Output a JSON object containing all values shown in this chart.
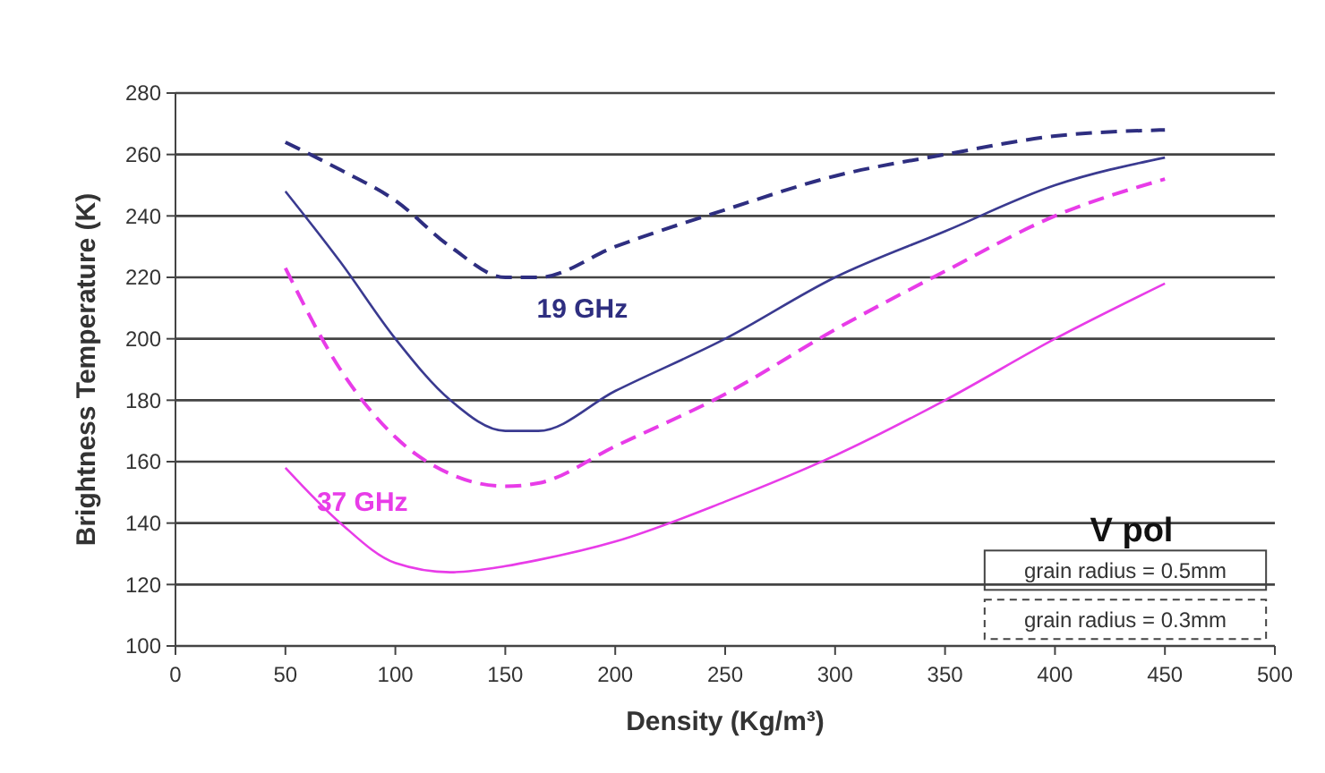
{
  "chart_data": {
    "type": "line",
    "xlabel": "Density (Kg/m³)",
    "ylabel": "Brightness Temperature (K)",
    "x": [
      50,
      75,
      100,
      125,
      150,
      165,
      200,
      250,
      300,
      350,
      400,
      450
    ],
    "xlim": [
      0,
      500
    ],
    "xticks": [
      0,
      50,
      100,
      150,
      200,
      250,
      300,
      350,
      400,
      450,
      500
    ],
    "ylim": [
      100,
      280
    ],
    "yticks": [
      100,
      120,
      140,
      160,
      180,
      200,
      220,
      240,
      260,
      280
    ],
    "grid": "y",
    "series": [
      {
        "color": "#2e2e80",
        "line_style": "dashed",
        "values": [
          264,
          255,
          245,
          230,
          220,
          220,
          230,
          242,
          253,
          260,
          266,
          268
        ]
      },
      {
        "color": "#3a3a90",
        "line_style": "solid",
        "values": [
          248,
          225,
          200,
          180,
          170,
          170,
          183,
          200,
          220,
          235,
          250,
          259
        ]
      },
      {
        "color": "#e83ce8",
        "line_style": "dashed",
        "values": [
          223,
          190,
          168,
          156,
          152,
          153,
          165,
          182,
          203,
          222,
          240,
          252
        ]
      },
      {
        "color": "#e83ce8",
        "line_style": "solid",
        "values": [
          158,
          140,
          127,
          124,
          126,
          128,
          134,
          147,
          162,
          180,
          200,
          218
        ]
      }
    ],
    "annotations": [
      "19 GHz",
      "37 GHz",
      "V pol",
      "grain radius = 0.5mm",
      "grain radius = 0.3mm"
    ]
  }
}
